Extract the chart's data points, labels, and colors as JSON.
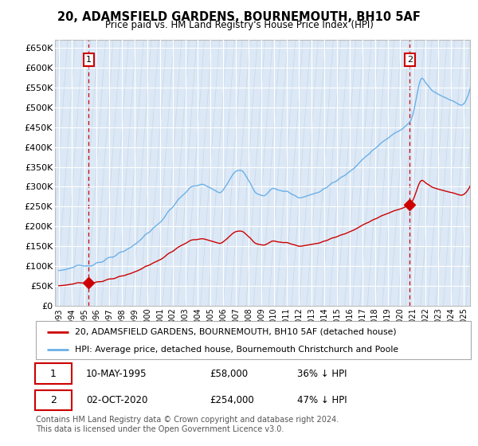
{
  "title": "20, ADAMSFIELD GARDENS, BOURNEMOUTH, BH10 5AF",
  "subtitle": "Price paid vs. HM Land Registry's House Price Index (HPI)",
  "ylim": [
    0,
    670000
  ],
  "yticks": [
    0,
    50000,
    100000,
    150000,
    200000,
    250000,
    300000,
    350000,
    400000,
    450000,
    500000,
    550000,
    600000,
    650000
  ],
  "ytick_labels": [
    "£0",
    "£50K",
    "£100K",
    "£150K",
    "£200K",
    "£250K",
    "£300K",
    "£350K",
    "£400K",
    "£450K",
    "£500K",
    "£550K",
    "£600K",
    "£650K"
  ],
  "hpi_color": "#6ab0e8",
  "price_color": "#cc0000",
  "marker_color": "#cc0000",
  "bg_color": "#dce8f5",
  "hatch_color": "#b8cce0",
  "grid_color": "#ffffff",
  "sale1_date": 1995.36,
  "sale1_price": 58000,
  "sale2_date": 2020.75,
  "sale2_price": 254000,
  "legend_label1": "20, ADAMSFIELD GARDENS, BOURNEMOUTH, BH10 5AF (detached house)",
  "legend_label2": "HPI: Average price, detached house, Bournemouth Christchurch and Poole",
  "annotation1_label": "1",
  "annotation2_label": "2",
  "ann1_date": 1995.36,
  "ann2_date": 2020.75,
  "footer": "Contains HM Land Registry data © Crown copyright and database right 2024.\nThis data is licensed under the Open Government Licence v3.0.",
  "note1": "10-MAY-1995",
  "note1_price": "£58,000",
  "note1_hpi": "36% ↓ HPI",
  "note2": "02-OCT-2020",
  "note2_price": "£254,000",
  "note2_hpi": "47% ↓ HPI"
}
